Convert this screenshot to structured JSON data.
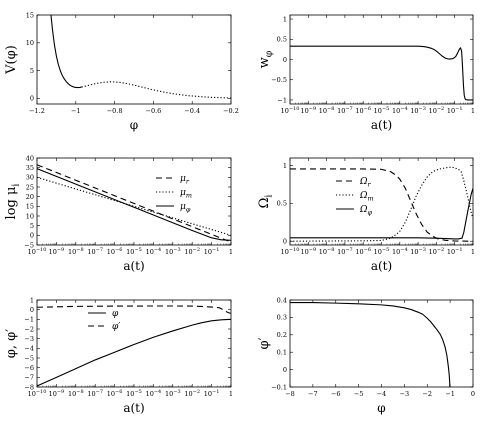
{
  "figure": {
    "panels_count": 6
  },
  "chart_data": [
    {
      "id": "potential",
      "type": "line",
      "xlabel": "φ",
      "ylabel": "V(φ)",
      "xlim": [
        -1.2,
        -0.2
      ],
      "ylim": [
        -1,
        15
      ],
      "x_ticks": [
        -1.2,
        -1.0,
        -0.8,
        -0.6,
        -0.4,
        -0.2
      ],
      "x_tick_labels": [
        "−1.2",
        "−1",
        "−0.8",
        "−0.6",
        "−0.4",
        "−0.2"
      ],
      "y_ticks": [
        0,
        5,
        10,
        15
      ],
      "y_tick_labels": [
        "0",
        "5",
        "10",
        "15"
      ],
      "series": [
        {
          "style": "solid",
          "x": [
            -1.128,
            -1.12,
            -1.11,
            -1.1,
            -1.09,
            -1.08,
            -1.07,
            -1.06,
            -1.05,
            -1.04,
            -1.03,
            -1.02,
            -1.01,
            -1.0,
            -0.99,
            -0.98,
            -0.97
          ],
          "y": [
            15.0,
            12.3,
            9.6,
            7.6,
            6.1,
            5.0,
            4.15,
            3.55,
            3.05,
            2.68,
            2.38,
            2.18,
            2.05,
            1.97,
            1.95,
            1.98,
            2.05
          ]
        },
        {
          "style": "dotted",
          "x": [
            -0.97,
            -0.94,
            -0.9,
            -0.86,
            -0.82,
            -0.78,
            -0.74,
            -0.7,
            -0.66,
            -0.62,
            -0.58,
            -0.54,
            -0.5,
            -0.46,
            -0.42,
            -0.38,
            -0.34,
            -0.3,
            -0.26,
            -0.22,
            -0.2
          ],
          "y": [
            2.05,
            2.3,
            2.65,
            2.9,
            2.98,
            2.92,
            2.7,
            2.4,
            2.05,
            1.7,
            1.38,
            1.1,
            0.86,
            0.66,
            0.5,
            0.38,
            0.28,
            0.2,
            0.14,
            0.1,
            0.08
          ]
        }
      ]
    },
    {
      "id": "eos",
      "type": "line",
      "xlabel": "a(t)",
      "ylabel": "w",
      "ylabel_sub": "φ",
      "xscale": "log",
      "xlim_log10": [
        -10,
        0
      ],
      "ylim": [
        -1.1,
        1.1
      ],
      "y_ticks": [
        -1,
        -0.5,
        0,
        0.5,
        1
      ],
      "y_tick_labels": [
        "−1",
        "−0.5",
        "0",
        "0.5",
        "1"
      ],
      "series": [
        {
          "style": "solid",
          "x_log10": [
            -10,
            -6,
            -4,
            -3,
            -2.7,
            -2.5,
            -2.3,
            -2.1,
            -1.9,
            -1.7,
            -1.5,
            -1.3,
            -1.1,
            -0.95,
            -0.85,
            -0.75,
            -0.68,
            -0.62,
            -0.57,
            -0.52,
            -0.48,
            -0.44,
            -0.4,
            -0.3,
            -0.2,
            -0.1,
            0
          ],
          "y": [
            0.33,
            0.33,
            0.33,
            0.328,
            0.32,
            0.305,
            0.28,
            0.24,
            0.17,
            0.09,
            0.03,
            0.01,
            0.02,
            0.07,
            0.15,
            0.25,
            0.29,
            0.2,
            -0.2,
            -0.65,
            -0.88,
            -0.96,
            -0.99,
            -1.0,
            -1.0,
            -1.0,
            -1.0
          ]
        }
      ]
    },
    {
      "id": "log_mu",
      "type": "line",
      "xlabel": "a(t)",
      "ylabel": "log μ",
      "ylabel_sub": "i",
      "xscale": "log",
      "xlim_log10": [
        -10,
        0
      ],
      "ylim": [
        -5,
        40
      ],
      "y_ticks": [
        -5,
        0,
        5,
        10,
        15,
        20,
        25,
        30,
        35,
        40
      ],
      "y_tick_labels": [
        "−5",
        "0",
        "5",
        "10",
        "15",
        "20",
        "25",
        "30",
        "35",
        "40"
      ],
      "legend": [
        "μ_r",
        "μ_m",
        "μ_φ"
      ],
      "series": [
        {
          "name": "μ_r",
          "style": "dashed",
          "x_log10": [
            -10,
            0
          ],
          "y": [
            36.5,
            -3.5
          ]
        },
        {
          "name": "μ_m",
          "style": "dotted",
          "x_log10": [
            -10,
            0
          ],
          "y": [
            30.0,
            0.0
          ]
        },
        {
          "name": "μ_φ",
          "style": "solid",
          "x_log10": [
            -10,
            -5,
            -2,
            -1,
            -0.5,
            0
          ],
          "y": [
            34.5,
            14.5,
            2.5,
            -1.3,
            -2.3,
            -2.6
          ]
        }
      ]
    },
    {
      "id": "omega",
      "type": "line",
      "xlabel": "a(t)",
      "ylabel": "Ω",
      "ylabel_sub": "i",
      "xscale": "log",
      "xlim_log10": [
        -10,
        0
      ],
      "ylim": [
        -0.05,
        1.1
      ],
      "y_ticks": [
        0,
        0.5,
        1
      ],
      "y_tick_labels": [
        "0",
        "0.5",
        "1"
      ],
      "legend": [
        "Ω_r",
        "Ω_m",
        "Ω_φ"
      ],
      "series": [
        {
          "name": "Ω_r",
          "style": "dashed",
          "x_log10": [
            -10,
            -6,
            -5,
            -4.5,
            -4.2,
            -4,
            -3.7,
            -3.4,
            -3.1,
            -2.8,
            -2.5,
            -2.2,
            -1.9,
            -1.5,
            -1,
            0
          ],
          "y": [
            0.955,
            0.955,
            0.95,
            0.92,
            0.87,
            0.82,
            0.7,
            0.53,
            0.36,
            0.22,
            0.12,
            0.065,
            0.03,
            0.012,
            0.003,
            0.0
          ]
        },
        {
          "name": "Ω_m",
          "style": "dotted",
          "x_log10": [
            -10,
            -6,
            -5,
            -4.5,
            -4.2,
            -4,
            -3.7,
            -3.4,
            -3.1,
            -2.8,
            -2.5,
            -2.2,
            -1.9,
            -1.5,
            -1.2,
            -1.0,
            -0.8,
            -0.65,
            -0.5,
            -0.3,
            -0.1,
            0
          ],
          "y": [
            0.0,
            0.005,
            0.01,
            0.04,
            0.09,
            0.13,
            0.25,
            0.42,
            0.6,
            0.74,
            0.85,
            0.92,
            0.95,
            0.97,
            0.98,
            0.97,
            0.95,
            0.92,
            0.8,
            0.6,
            0.38,
            0.3
          ]
        },
        {
          "name": "Ω_φ",
          "style": "solid",
          "x_log10": [
            -10,
            -3,
            -2,
            -1.5,
            -1.0,
            -0.8,
            -0.6,
            -0.5,
            -0.3,
            -0.1,
            0
          ],
          "y": [
            0.045,
            0.045,
            0.04,
            0.035,
            0.03,
            0.03,
            0.04,
            0.12,
            0.38,
            0.62,
            0.7
          ]
        }
      ]
    },
    {
      "id": "phi_evolution",
      "type": "line",
      "xlabel": "a(t)",
      "ylabel": "φ, φ′",
      "xscale": "log",
      "xlim_log10": [
        -10,
        0
      ],
      "ylim": [
        -8,
        1
      ],
      "y_ticks": [
        -8,
        -7,
        -6,
        -5,
        -4,
        -3,
        -2,
        -1,
        0,
        1
      ],
      "y_tick_labels": [
        "−8",
        "−7",
        "−6",
        "−5",
        "−4",
        "−3",
        "−2",
        "−1",
        "0",
        "1"
      ],
      "legend": [
        "φ",
        "φ′"
      ],
      "series": [
        {
          "name": "φ",
          "style": "solid",
          "x_log10": [
            -10,
            -9,
            -8,
            -7,
            -6,
            -5,
            -4,
            -3,
            -2,
            -1.5,
            -1,
            -0.5,
            0
          ],
          "y": [
            -7.9,
            -7.0,
            -6.1,
            -5.2,
            -4.4,
            -3.6,
            -2.85,
            -2.2,
            -1.6,
            -1.35,
            -1.15,
            -1.05,
            -1.0
          ]
        },
        {
          "name": "φ′",
          "style": "dashed",
          "x_log10": [
            -10,
            -8,
            -6,
            -4,
            -3,
            -2,
            -1.5,
            -1,
            -0.6,
            -0.4,
            -0.2,
            0
          ],
          "y": [
            0.25,
            0.34,
            0.37,
            0.38,
            0.38,
            0.37,
            0.33,
            0.27,
            0.2,
            0.0,
            -0.25,
            -0.4
          ]
        }
      ]
    },
    {
      "id": "phase_space",
      "type": "line",
      "xlabel": "φ",
      "ylabel": "φ′",
      "xlim": [
        -8,
        0
      ],
      "ylim": [
        -0.1,
        0.4
      ],
      "x_ticks": [
        -8,
        -7,
        -6,
        -5,
        -4,
        -3,
        -2,
        -1,
        0
      ],
      "x_tick_labels": [
        "−8",
        "−7",
        "−6",
        "−5",
        "−4",
        "−3",
        "−2",
        "−1",
        "0"
      ],
      "y_ticks": [
        -0.1,
        0,
        0.1,
        0.2,
        0.3,
        0.4
      ],
      "y_tick_labels": [
        "−0.1",
        "0",
        "0.1",
        "0.2",
        "0.3",
        "0.4"
      ],
      "series": [
        {
          "style": "solid",
          "x": [
            -8.0,
            -7.0,
            -6.0,
            -5.0,
            -4.0,
            -3.5,
            -3.0,
            -2.7,
            -2.4,
            -2.2,
            -2.0,
            -1.85,
            -1.7,
            -1.55,
            -1.42,
            -1.32,
            -1.22,
            -1.14,
            -1.08,
            -1.04,
            -1.02,
            -1.015,
            -1.015
          ],
          "y": [
            0.385,
            0.385,
            0.382,
            0.378,
            0.372,
            0.366,
            0.355,
            0.345,
            0.33,
            0.318,
            0.295,
            0.275,
            0.25,
            0.225,
            0.2,
            0.17,
            0.13,
            0.08,
            0.02,
            -0.03,
            -0.07,
            -0.09,
            -0.1
          ]
        }
      ]
    }
  ]
}
